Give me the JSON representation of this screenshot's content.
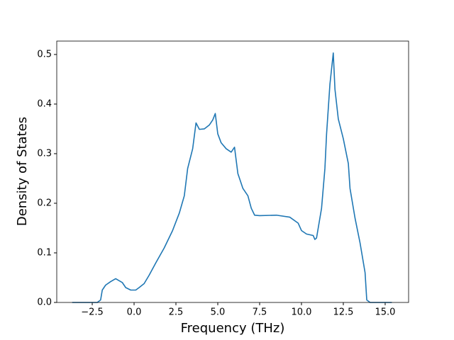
{
  "chart_data": {
    "type": "line",
    "x_label": "Frequency (THz)",
    "y_label": "Density of States",
    "xlim": [
      -4.62,
      16.4
    ],
    "ylim": [
      0,
      0.527
    ],
    "xticks": [
      {
        "value": -2.5,
        "label": "−2.5"
      },
      {
        "value": 0,
        "label": "0.0"
      },
      {
        "value": 2.5,
        "label": "2.5"
      },
      {
        "value": 5,
        "label": "5.0"
      },
      {
        "value": 7.5,
        "label": "7.5"
      },
      {
        "value": 10,
        "label": "10.0"
      },
      {
        "value": 12.5,
        "label": "12.5"
      },
      {
        "value": 15,
        "label": "15.0"
      }
    ],
    "yticks": [
      {
        "value": 0,
        "label": "0.0"
      },
      {
        "value": 0.1,
        "label": "0.1"
      },
      {
        "value": 0.2,
        "label": "0.2"
      },
      {
        "value": 0.3,
        "label": "0.3"
      },
      {
        "value": 0.4,
        "label": "0.4"
      },
      {
        "value": 0.5,
        "label": "0.5"
      }
    ],
    "x": [
      -3.7,
      -2.2,
      -2.0,
      -1.9,
      -1.7,
      -1.4,
      -1.1,
      -0.9,
      -0.7,
      -0.5,
      -0.2,
      0.1,
      0.3,
      0.6,
      0.9,
      1.3,
      1.8,
      2.3,
      2.7,
      3.0,
      3.2,
      3.5,
      3.7,
      3.9,
      4.2,
      4.5,
      4.7,
      4.85,
      5.0,
      5.2,
      5.5,
      5.8,
      6.0,
      6.2,
      6.5,
      6.8,
      7.0,
      7.2,
      7.5,
      8.5,
      9.3,
      9.8,
      10.0,
      10.3,
      10.7,
      10.8,
      10.9,
      11.2,
      11.4,
      11.5,
      11.7,
      11.9,
      12.0,
      12.2,
      12.5,
      12.8,
      12.9,
      13.2,
      13.5,
      13.8,
      13.9,
      14.1,
      15.4
    ],
    "series": [
      {
        "color": "#1f77b4",
        "values": [
          0,
          0,
          0.005,
          0.025,
          0.035,
          0.042,
          0.048,
          0.044,
          0.04,
          0.03,
          0.025,
          0.025,
          0.03,
          0.038,
          0.055,
          0.08,
          0.11,
          0.145,
          0.18,
          0.215,
          0.27,
          0.31,
          0.362,
          0.349,
          0.35,
          0.358,
          0.368,
          0.381,
          0.34,
          0.322,
          0.31,
          0.303,
          0.313,
          0.26,
          0.23,
          0.215,
          0.19,
          0.176,
          0.175,
          0.176,
          0.172,
          0.16,
          0.145,
          0.138,
          0.135,
          0.127,
          0.13,
          0.19,
          0.27,
          0.34,
          0.44,
          0.503,
          0.43,
          0.37,
          0.33,
          0.28,
          0.23,
          0.17,
          0.12,
          0.06,
          0.005,
          0,
          0
        ]
      }
    ]
  }
}
